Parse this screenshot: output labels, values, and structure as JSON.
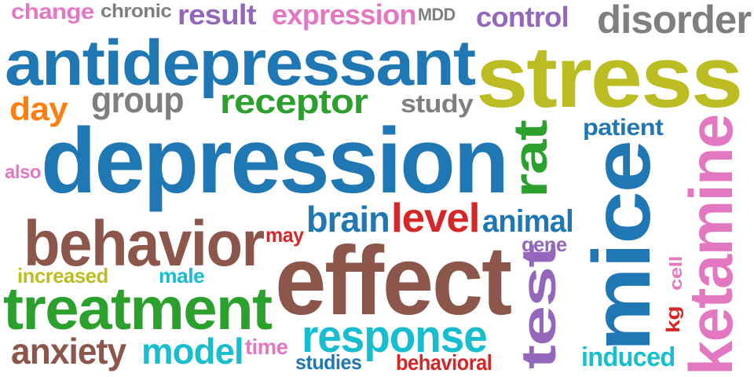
{
  "words": [
    {
      "text": "change",
      "color": "#e377c2"
    },
    {
      "text": "chronic",
      "color": "#7f7f7f"
    },
    {
      "text": "result",
      "color": "#9467bd"
    },
    {
      "text": "expression",
      "color": "#e377c2"
    },
    {
      "text": "MDD",
      "color": "#7f7f7f"
    },
    {
      "text": "control",
      "color": "#9467bd"
    },
    {
      "text": "disorder",
      "color": "#7f7f7f"
    },
    {
      "text": "antidepressant",
      "color": "#1f77b4"
    },
    {
      "text": "stress",
      "color": "#bcbd22"
    },
    {
      "text": "day",
      "color": "#ff7f0e"
    },
    {
      "text": "group",
      "color": "#7f7f7f"
    },
    {
      "text": "receptor",
      "color": "#2ca02c"
    },
    {
      "text": "study",
      "color": "#7f7f7f"
    },
    {
      "text": "patient",
      "color": "#1f77b4"
    },
    {
      "text": "depression",
      "color": "#1f77b4"
    },
    {
      "text": "rat",
      "color": "#2ca02c"
    },
    {
      "text": "also",
      "color": "#e377c2"
    },
    {
      "text": "ketamine",
      "color": "#e377c2"
    },
    {
      "text": "mice",
      "color": "#1f77b4"
    },
    {
      "text": "behavior",
      "color": "#8c564b"
    },
    {
      "text": "brain",
      "color": "#1f77b4"
    },
    {
      "text": "level",
      "color": "#d62728"
    },
    {
      "text": "animal",
      "color": "#1f77b4"
    },
    {
      "text": "may",
      "color": "#d62728"
    },
    {
      "text": "gene",
      "color": "#9467bd"
    },
    {
      "text": "effect",
      "color": "#8c564b"
    },
    {
      "text": "increased",
      "color": "#bcbd22"
    },
    {
      "text": "male",
      "color": "#17becf"
    },
    {
      "text": "test",
      "color": "#9467bd"
    },
    {
      "text": "cell",
      "color": "#e377c2"
    },
    {
      "text": "treatment",
      "color": "#2ca02c"
    },
    {
      "text": "kg",
      "color": "#d62728"
    },
    {
      "text": "response",
      "color": "#17becf"
    },
    {
      "text": "anxiety",
      "color": "#8c564b"
    },
    {
      "text": "model",
      "color": "#17becf"
    },
    {
      "text": "time",
      "color": "#e377c2"
    },
    {
      "text": "studies",
      "color": "#1f77b4"
    },
    {
      "text": "behavioral",
      "color": "#d62728"
    },
    {
      "text": "induced",
      "color": "#17becf"
    }
  ]
}
